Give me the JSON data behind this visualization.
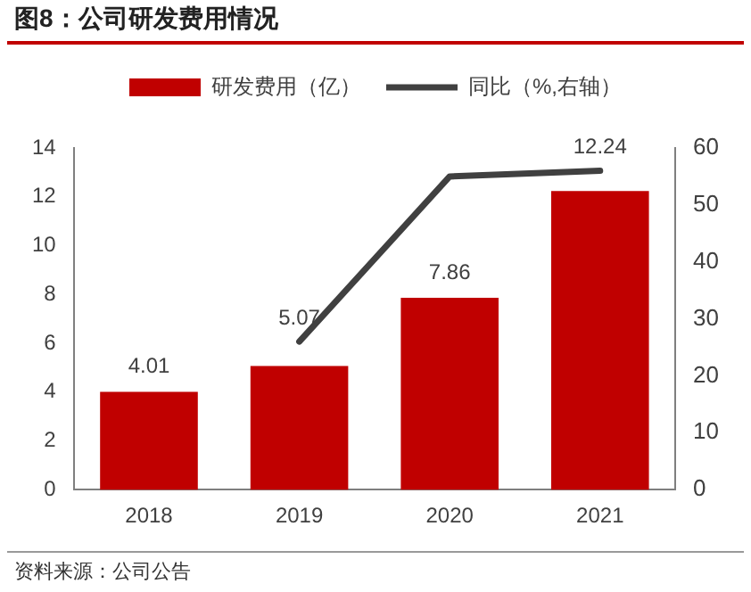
{
  "chart_data": {
    "type": "bar",
    "title": "图8：公司研发费用情况",
    "categories": [
      "2018",
      "2019",
      "2020",
      "2021"
    ],
    "series": [
      {
        "name": "研发费用（亿）",
        "color": "#c00000",
        "values": [
          4.01,
          5.07,
          7.86,
          12.24
        ],
        "value_labels": [
          "4.01",
          "5.07",
          "7.86",
          "12.24"
        ]
      },
      {
        "name": "同比（%,右轴）",
        "type": "line",
        "axis": "y2",
        "color": "#404040",
        "values": [
          null,
          26,
          55,
          56
        ]
      }
    ],
    "ylim": [
      0,
      14
    ],
    "yticks": [
      0,
      2,
      4,
      6,
      8,
      10,
      12,
      14
    ],
    "y2lim": [
      0,
      60
    ],
    "y2ticks": [
      0,
      10,
      20,
      30,
      40,
      50,
      60
    ],
    "grid": false,
    "legend": "top",
    "marker": "none",
    "line_style": "solid",
    "annotations": [
      "资料来源：公司公告"
    ]
  }
}
